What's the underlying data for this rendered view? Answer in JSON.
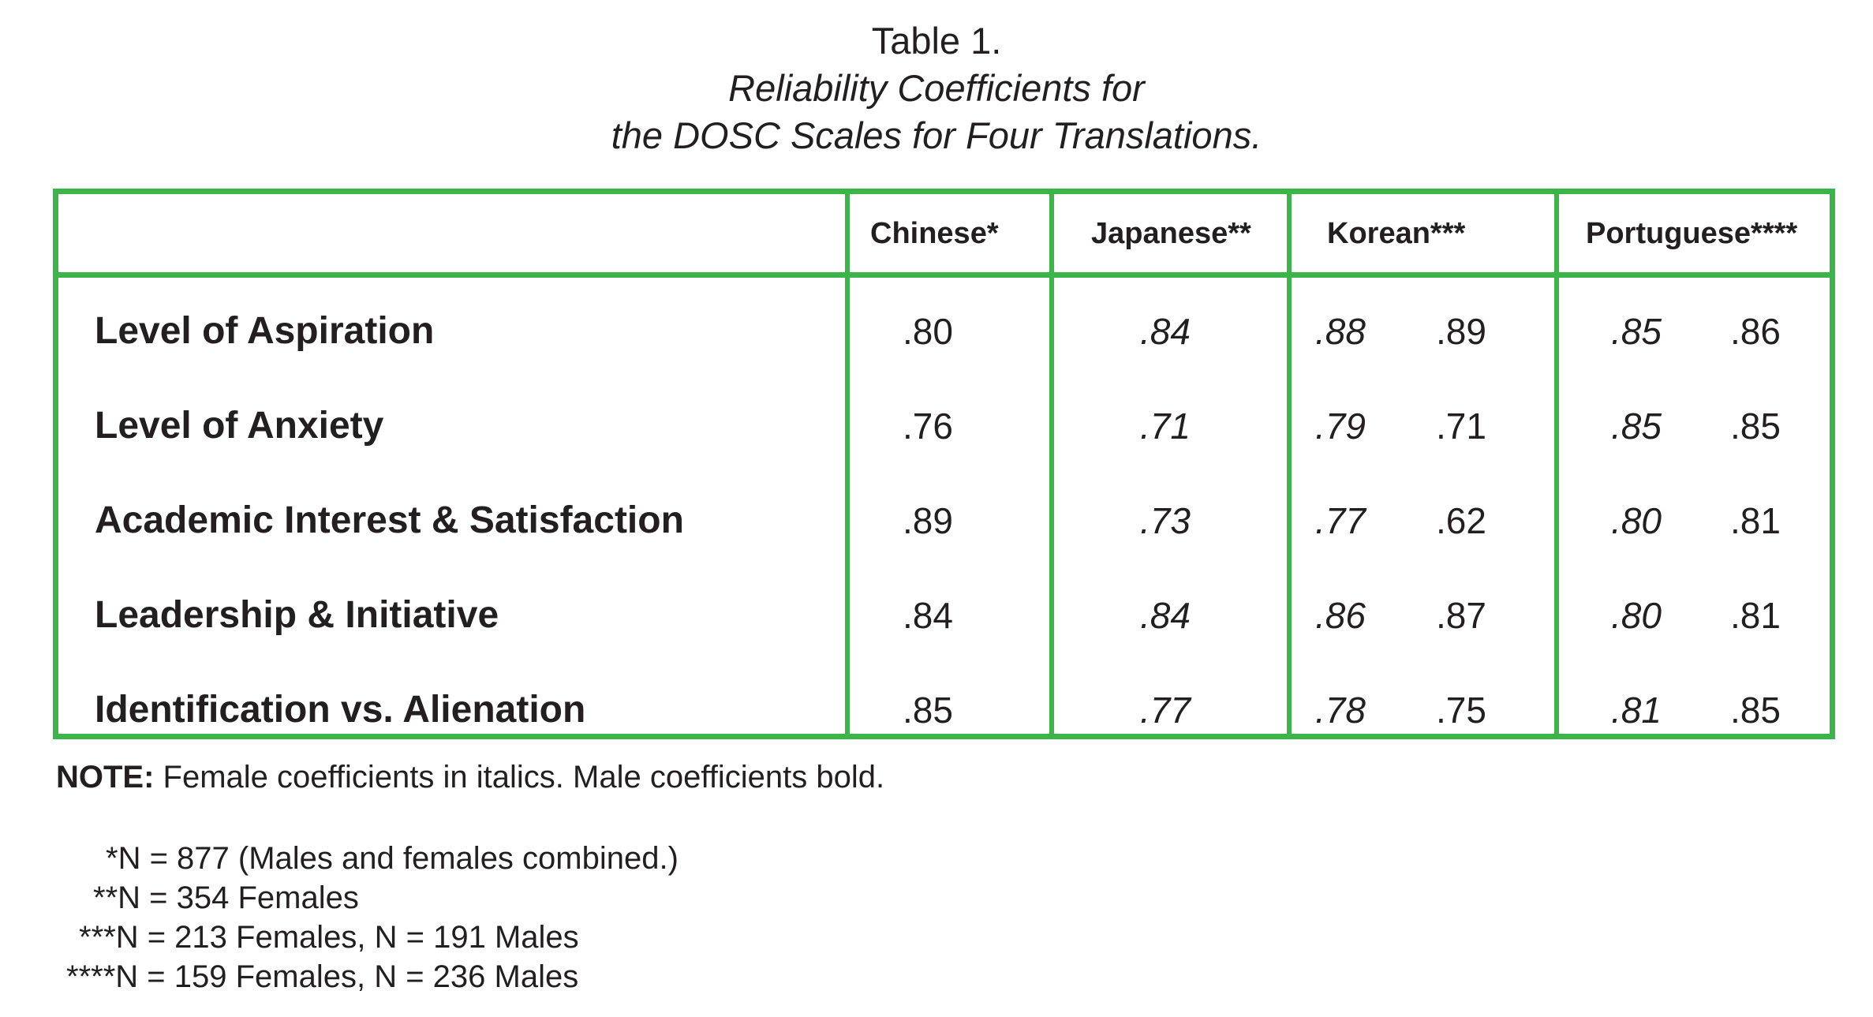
{
  "caption": {
    "number": "Table 1.",
    "title_line1": "Reliability Coefficients for",
    "title_line2": "the DOSC Scales for Four Translations."
  },
  "table": {
    "border_color": "#3bb54a",
    "columns": [
      "Chinese*",
      "Japanese**",
      "Korean***",
      "Portuguese****"
    ],
    "rows": [
      {
        "label": "Level of Aspiration",
        "chinese": ".80",
        "japanese": ".84",
        "korean_female": ".88",
        "korean_male": ".89",
        "portuguese_female": ".85",
        "portuguese_male": ".86"
      },
      {
        "label": "Level of Anxiety",
        "chinese": ".76",
        "japanese": ".71",
        "korean_female": ".79",
        "korean_male": ".71",
        "portuguese_female": ".85",
        "portuguese_male": ".85"
      },
      {
        "label": "Academic Interest & Satisfaction",
        "chinese": ".89",
        "japanese": ".73",
        "korean_female": ".77",
        "korean_male": ".62",
        "portuguese_female": ".80",
        "portuguese_male": ".81"
      },
      {
        "label": "Leadership & Initiative",
        "chinese": ".84",
        "japanese": ".84",
        "korean_female": ".86",
        "korean_male": ".87",
        "portuguese_female": ".80",
        "portuguese_male": ".81"
      },
      {
        "label": "Identification vs. Alienation",
        "chinese": ".85",
        "japanese": ".77",
        "korean_female": ".78",
        "korean_male": ".75",
        "portuguese_female": ".81",
        "portuguese_male": ".85"
      }
    ]
  },
  "note": {
    "label": "NOTE:",
    "text": " Female coefficients in italics. Male coefficients bold."
  },
  "footnotes": [
    "*N = 877 (Males and females combined.)",
    "**N = 354 Females",
    "***N = 213 Females, N = 191 Males",
    "****N = 159 Females, N = 236 Males"
  ]
}
